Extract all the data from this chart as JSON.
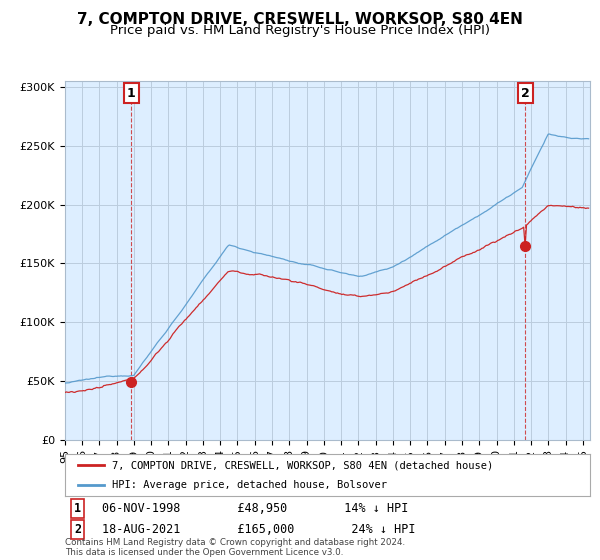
{
  "title": "7, COMPTON DRIVE, CRESWELL, WORKSOP, S80 4EN",
  "subtitle": "Price paid vs. HM Land Registry's House Price Index (HPI)",
  "ytick_values": [
    0,
    50000,
    100000,
    150000,
    200000,
    250000,
    300000
  ],
  "ylim": [
    0,
    305000
  ],
  "xlim_start": 1995.0,
  "xlim_end": 2025.4,
  "hpi_color": "#5599cc",
  "price_color": "#cc2222",
  "plot_bg_color": "#ddeeff",
  "sale1_date": 1998.86,
  "sale1_price": 48950,
  "sale2_date": 2021.63,
  "sale2_price": 165000,
  "legend_line1": "7, COMPTON DRIVE, CRESWELL, WORKSOP, S80 4EN (detached house)",
  "legend_line2": "HPI: Average price, detached house, Bolsover",
  "annotation1_text": "06-NOV-1998        £48,950        14% ↓ HPI",
  "annotation2_text": "18-AUG-2021        £165,000        24% ↓ HPI",
  "footer_text": "Contains HM Land Registry data © Crown copyright and database right 2024.\nThis data is licensed under the Open Government Licence v3.0.",
  "background_color": "#ffffff",
  "grid_color": "#bbccdd",
  "title_fontsize": 11,
  "subtitle_fontsize": 9.5,
  "tick_fontsize": 8
}
